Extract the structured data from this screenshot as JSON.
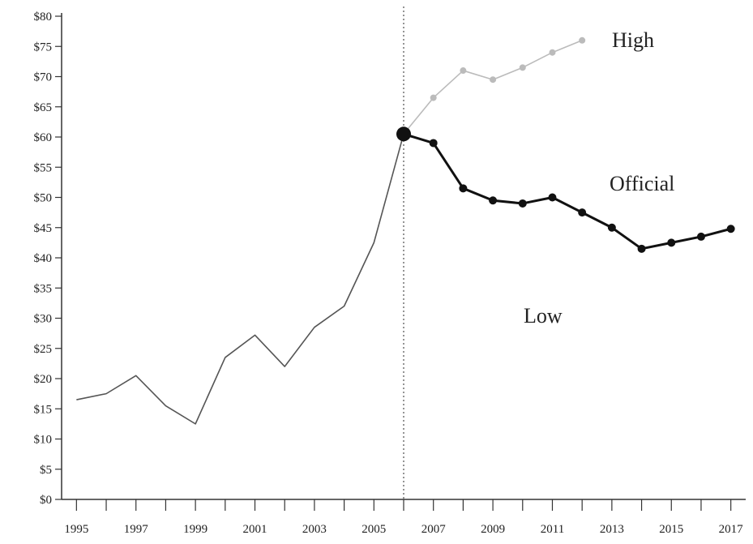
{
  "chart_data": {
    "type": "line",
    "title": "",
    "xlabel": "",
    "ylabel": "",
    "x": [
      1995,
      1996,
      1997,
      1998,
      1999,
      2000,
      2001,
      2002,
      2003,
      2004,
      2005,
      2006,
      2007,
      2008,
      2009,
      2010,
      2011,
      2012,
      2013,
      2014,
      2015,
      2016,
      2017
    ],
    "xlim": [
      1994.5,
      2017.5
    ],
    "ylim": [
      0,
      80
    ],
    "y_ticks": [
      "$0",
      "$5",
      "$10",
      "$15",
      "$20",
      "$25",
      "$30",
      "$35",
      "$40",
      "$45",
      "$50",
      "$55",
      "$60",
      "$65",
      "$70",
      "$75",
      "$80"
    ],
    "x_tick_labels": [
      "1995",
      "1997",
      "1999",
      "2001",
      "2003",
      "2005",
      "2007",
      "2009",
      "2011",
      "2013",
      "2015",
      "2017"
    ],
    "grid": false,
    "divider_year": 2006,
    "series": [
      {
        "key": "historical",
        "color": "#555555",
        "points": [
          [
            1995,
            16.5
          ],
          [
            1996,
            17.5
          ],
          [
            1997,
            20.5
          ],
          [
            1998,
            15.5
          ],
          [
            1999,
            12.5
          ],
          [
            2000,
            23.5
          ],
          [
            2001,
            27.2
          ],
          [
            2002,
            22
          ],
          [
            2003,
            28.5
          ],
          [
            2004,
            32
          ],
          [
            2005,
            42.5
          ],
          [
            2006,
            60.5
          ]
        ]
      },
      {
        "key": "official",
        "color": "#111111",
        "points": [
          [
            2006,
            60.5
          ],
          [
            2007,
            59
          ],
          [
            2008,
            51.5
          ],
          [
            2009,
            49.5
          ],
          [
            2010,
            49
          ],
          [
            2011,
            50
          ],
          [
            2012,
            47.5
          ],
          [
            2013,
            45
          ],
          [
            2014,
            41.5
          ],
          [
            2015,
            42.5
          ],
          [
            2016,
            43.5
          ],
          [
            2017,
            44.8
          ]
        ]
      },
      {
        "key": "high",
        "color": "#bbbbbb",
        "points": [
          [
            2006,
            60.5
          ],
          [
            2007,
            66.5
          ],
          [
            2008,
            71
          ],
          [
            2009,
            69.5
          ],
          [
            2010,
            71.5
          ],
          [
            2011,
            74
          ],
          [
            2012,
            76
          ]
        ]
      }
    ],
    "annotations": [
      "High",
      "Official",
      "Low"
    ]
  }
}
